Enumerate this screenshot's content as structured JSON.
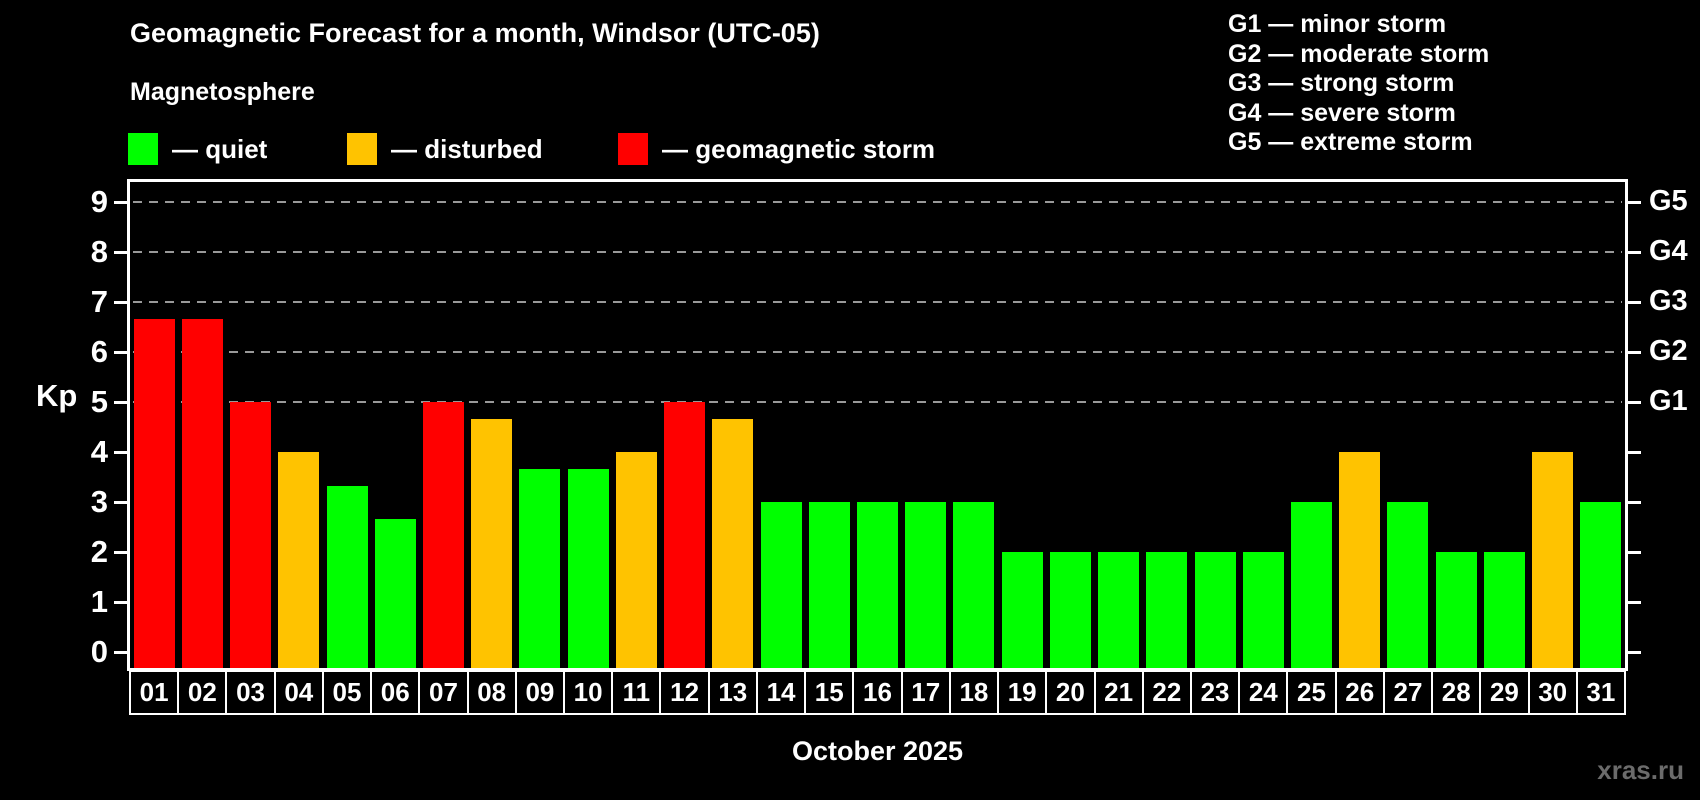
{
  "header": {
    "title": "Geomagnetic Forecast for a month, Windsor (UTC-05)",
    "subtitle": "Magnetosphere"
  },
  "legend": {
    "items": [
      {
        "key": "quiet",
        "label": "— quiet",
        "color": "#00ff00"
      },
      {
        "key": "disturbed",
        "label": "— disturbed",
        "color": "#ffc300"
      },
      {
        "key": "storm",
        "label": "— geomagnetic storm",
        "color": "#ff0000"
      }
    ]
  },
  "g_scale_legend": {
    "lines": [
      "G1 — minor storm",
      "G2 — moderate storm",
      "G3 — strong storm",
      "G4 — severe storm",
      "G5 — extreme storm"
    ]
  },
  "chart_data": {
    "type": "bar",
    "title": "Geomagnetic Forecast for a month, Windsor (UTC-05)",
    "subtitle": "Magnetosphere",
    "xlabel": "October 2025",
    "ylabel": "Kp",
    "ylim": [
      -0.32,
      9.4
    ],
    "grid": "horizontal dashed lines at Kp 5-9 only",
    "legend_position": "top-left",
    "categories": [
      "01",
      "02",
      "03",
      "04",
      "05",
      "06",
      "07",
      "08",
      "09",
      "10",
      "11",
      "12",
      "13",
      "14",
      "15",
      "16",
      "17",
      "18",
      "19",
      "20",
      "21",
      "22",
      "23",
      "24",
      "25",
      "26",
      "27",
      "28",
      "29",
      "30",
      "31"
    ],
    "values": [
      6.67,
      6.67,
      5.0,
      4.0,
      3.33,
      2.67,
      5.0,
      4.67,
      3.67,
      3.67,
      4.0,
      5.0,
      4.67,
      3.0,
      3.0,
      3.0,
      3.0,
      3.0,
      2.0,
      2.0,
      2.0,
      2.0,
      2.0,
      2.0,
      3.0,
      4.0,
      3.0,
      2.0,
      2.0,
      4.0,
      3.0
    ],
    "statuses": [
      "storm",
      "storm",
      "storm",
      "disturbed",
      "quiet",
      "quiet",
      "storm",
      "disturbed",
      "quiet",
      "quiet",
      "disturbed",
      "storm",
      "disturbed",
      "quiet",
      "quiet",
      "quiet",
      "quiet",
      "quiet",
      "quiet",
      "quiet",
      "quiet",
      "quiet",
      "quiet",
      "quiet",
      "quiet",
      "disturbed",
      "quiet",
      "quiet",
      "quiet",
      "disturbed",
      "quiet"
    ],
    "status_colors": {
      "quiet": "#00ff00",
      "disturbed": "#ffc300",
      "storm": "#ff0000"
    },
    "left_ticks": [
      0,
      1,
      2,
      3,
      4,
      5,
      6,
      7,
      8,
      9
    ],
    "right_axis_labels": [
      {
        "kp": 5,
        "label": "G1"
      },
      {
        "kp": 6,
        "label": "G2"
      },
      {
        "kp": 7,
        "label": "G3"
      },
      {
        "kp": 8,
        "label": "G4"
      },
      {
        "kp": 9,
        "label": "G5"
      }
    ],
    "gridlines_kp": [
      5,
      6,
      7,
      8,
      9
    ]
  },
  "footer": {
    "month_label": "October 2025",
    "watermark": "xras.ru"
  }
}
